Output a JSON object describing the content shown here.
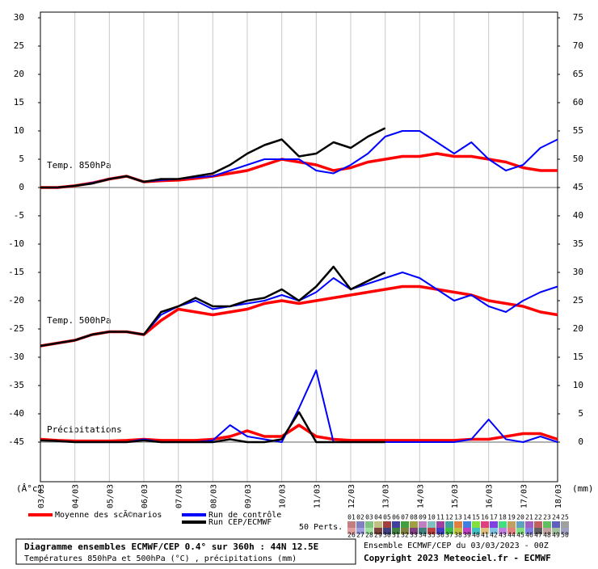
{
  "chart_data": {
    "type": "line",
    "y_unit_label": "(Â°c)",
    "y2_unit_label": "(mm)",
    "annotations": [
      "Temp. 850hPa",
      "Temp. 500hPa",
      "Précipitations"
    ],
    "x": [
      0,
      12,
      24,
      36,
      48,
      60,
      72,
      84,
      96,
      108,
      120,
      132,
      144,
      156,
      168,
      180,
      192,
      204,
      216,
      228,
      240,
      252,
      264,
      276,
      288,
      300,
      312,
      324,
      336,
      348,
      360
    ],
    "xlim": [
      0,
      360
    ],
    "xticks": [
      {
        "value": 0,
        "label": "03/03"
      },
      {
        "value": 24,
        "label": "04/03"
      },
      {
        "value": 48,
        "label": "05/03"
      },
      {
        "value": 72,
        "label": "06/03"
      },
      {
        "value": 96,
        "label": "07/03"
      },
      {
        "value": 120,
        "label": "08/03"
      },
      {
        "value": 144,
        "label": "09/03"
      },
      {
        "value": 168,
        "label": "10/03"
      },
      {
        "value": 192,
        "label": "11/03"
      },
      {
        "value": 216,
        "label": "12/03"
      },
      {
        "value": 240,
        "label": "13/03"
      },
      {
        "value": 264,
        "label": "14/03"
      },
      {
        "value": 288,
        "label": "15/03"
      },
      {
        "value": 312,
        "label": "16/03"
      },
      {
        "value": 336,
        "label": "17/03"
      },
      {
        "value": 360,
        "label": "18/03"
      }
    ],
    "ylim": [
      -52,
      31
    ],
    "yticks": [
      -45,
      -40,
      -35,
      -30,
      -25,
      -20,
      -15,
      -10,
      -5,
      0,
      5,
      10,
      15,
      20,
      25,
      30
    ],
    "y2lim": [
      -7,
      76
    ],
    "y2ticks": [
      0,
      5,
      10,
      15,
      20,
      25,
      30,
      35,
      40,
      45,
      50,
      55,
      60,
      65,
      70,
      75
    ],
    "reference_lines": [
      0,
      -45
    ],
    "grid": true,
    "series": [
      {
        "name": "Moyenne des scÃ©narios",
        "color": "#ff0000",
        "t850": [
          0,
          0,
          0.3,
          0.8,
          1.5,
          2,
          1,
          1.2,
          1.3,
          1.6,
          2,
          2.5,
          3,
          4,
          5,
          4.5,
          4,
          3,
          3.5,
          4.5,
          5,
          5.5,
          5.5,
          6,
          5.5,
          5.5,
          5,
          4.5,
          3.5,
          3,
          3
        ],
        "t500": [
          -28,
          -27.5,
          -27,
          -26,
          -25.5,
          -25.5,
          -26,
          -23.5,
          -21.5,
          -22,
          -22.5,
          -22,
          -21.5,
          -20.5,
          -20,
          -20.5,
          -20,
          -19.5,
          -19,
          -18.5,
          -18,
          -17.5,
          -17.5,
          -18,
          -18.5,
          -19,
          -20,
          -20.5,
          -21,
          -22,
          -22.5
        ],
        "precip": [
          0.5,
          0.3,
          0.2,
          0.2,
          0.2,
          0.3,
          0.5,
          0.3,
          0.3,
          0.3,
          0.5,
          1,
          2,
          1,
          1,
          3,
          1,
          0.5,
          0.3,
          0.3,
          0.3,
          0.3,
          0.3,
          0.3,
          0.3,
          0.5,
          0.5,
          1,
          1.5,
          1.5,
          0.5
        ]
      },
      {
        "name": "Run de contrôle",
        "color": "#0000ff",
        "t850": [
          0,
          0,
          0.3,
          0.8,
          1.5,
          2,
          1,
          1.3,
          1.5,
          1.8,
          2,
          3,
          4,
          5,
          5,
          5,
          3,
          2.5,
          4,
          6,
          9,
          10,
          10,
          8,
          6,
          8,
          5,
          3,
          4,
          7,
          8.5
        ],
        "t500": [
          -28,
          -27.5,
          -27,
          -26,
          -25.5,
          -25.5,
          -26,
          -22.5,
          -21,
          -20,
          -21.5,
          -21,
          -20.5,
          -20,
          -19,
          -20,
          -18.5,
          -16,
          -18,
          -17,
          -16,
          -15,
          -16,
          -18,
          -20,
          -19,
          -21,
          -22,
          -20,
          -18.5,
          -17.5
        ],
        "precip": [
          0.3,
          0.2,
          0,
          0,
          0,
          0,
          0.5,
          0,
          0,
          0,
          0.3,
          3,
          1,
          0.5,
          0,
          6,
          12.7,
          0,
          0,
          0,
          0,
          0,
          0,
          0,
          0,
          0.5,
          4,
          0.5,
          0,
          1,
          0
        ]
      },
      {
        "name": "Run CEP/ECMWF",
        "color": "#000000",
        "t850": [
          0,
          0,
          0.3,
          0.7,
          1.5,
          2,
          1,
          1.5,
          1.5,
          2,
          2.5,
          4,
          6,
          7.5,
          8.5,
          5.5,
          6,
          8,
          7,
          9,
          10.5,
          null,
          null,
          null,
          null,
          null,
          null,
          null,
          null,
          null,
          null
        ],
        "t500": [
          -28,
          -27.5,
          -27,
          -26,
          -25.5,
          -25.5,
          -26,
          -22,
          -21,
          -19.5,
          -21,
          -21,
          -20,
          -19.5,
          -18,
          -20,
          -17.5,
          -14,
          -18,
          -16.5,
          -15,
          null,
          null,
          null,
          null,
          null,
          null,
          null,
          null,
          null,
          null
        ],
        "precip": [
          0.3,
          0.2,
          0,
          0,
          0,
          0,
          0.3,
          0,
          0,
          0,
          0,
          0.5,
          0,
          0,
          0.5,
          5.3,
          0,
          0,
          0,
          0,
          0,
          null,
          null,
          null,
          null,
          null,
          null,
          null,
          null,
          null,
          null
        ]
      }
    ],
    "perturbations": {
      "label": "50 Perts.",
      "members": [
        "01",
        "02",
        "03",
        "04",
        "05",
        "06",
        "07",
        "08",
        "09",
        "10",
        "11",
        "12",
        "13",
        "14",
        "15",
        "16",
        "17",
        "18",
        "19",
        "20",
        "21",
        "22",
        "23",
        "24",
        "25",
        "26",
        "27",
        "28",
        "29",
        "30",
        "31",
        "32",
        "33",
        "34",
        "35",
        "36",
        "37",
        "38",
        "39",
        "40",
        "41",
        "42",
        "43",
        "44",
        "45",
        "46",
        "47",
        "48",
        "49",
        "50"
      ],
      "colors": [
        "#c08080",
        "#8080c0",
        "#80c080",
        "#c0c080",
        "#a04040",
        "#4040a0",
        "#40a040",
        "#a0a040",
        "#c080c0",
        "#80c0c0",
        "#a040a0",
        "#40a0a0",
        "#e08040",
        "#4080e0",
        "#80e040",
        "#e04080",
        "#8040e0",
        "#40e080",
        "#c0a060",
        "#60a0c0",
        "#a060c0",
        "#c06060",
        "#60c060",
        "#6060c0",
        "#a0a0a0",
        "#e0a0a0",
        "#a0a0e0",
        "#a0e0a0",
        "#804040",
        "#404080",
        "#408040",
        "#808040",
        "#804080",
        "#408080",
        "#c04040",
        "#4040c0",
        "#40c040",
        "#c0c040",
        "#c040c0",
        "#40c0c0",
        "#e0c080",
        "#80c0e0",
        "#c080e0",
        "#e08080",
        "#80e080",
        "#8080e0",
        "#606060",
        "#c0a0a0",
        "#a0c0a0",
        "#a0a0c0"
      ]
    },
    "footer": {
      "title": "Diagramme ensembles ECMWF/CEP 0.4° sur 360h : 44N 12.5E",
      "subtitle": "Températures 850hPa et 500hPa (°C) , précipitations (mm)",
      "run": "Ensemble ECMWF/CEP du 03/03/2023 - 00Z",
      "copyright": "Copyright 2023 Meteociel.fr - ECMWF"
    }
  }
}
